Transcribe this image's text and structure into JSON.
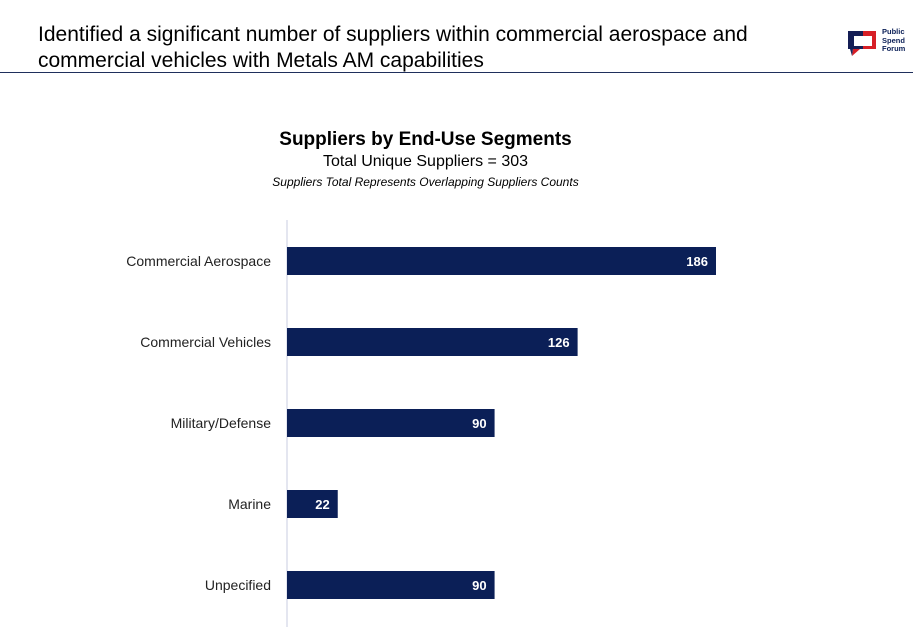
{
  "slide": {
    "title": "Identified a significant number of suppliers within commercial aerospace and commercial vehicles with Metals AM capabilities"
  },
  "logo": {
    "lines": [
      "Public",
      "Spend",
      "Forum"
    ],
    "icon": "speech-bubble-logo-icon"
  },
  "colors": {
    "bar": "#0b1f57",
    "axis": "#c8cde0",
    "logo_red": "#d71f26",
    "logo_navy": "#0b1f57"
  },
  "chart_data": {
    "type": "bar",
    "orientation": "horizontal",
    "title": "Suppliers by End-Use Segments",
    "subtitle": "Total Unique Suppliers = 303",
    "note": "Suppliers Total Represents Overlapping Suppliers Counts",
    "categories": [
      "Commercial Aerospace",
      "Commercial Vehicles",
      "Military/Defense",
      "Marine",
      "Unpecified"
    ],
    "values": [
      186,
      126,
      90,
      22,
      90
    ],
    "data_labels": [
      "186",
      "126",
      "90",
      "22",
      "90"
    ],
    "xlim": [
      0,
      270
    ],
    "grid": false,
    "legend": "none"
  }
}
